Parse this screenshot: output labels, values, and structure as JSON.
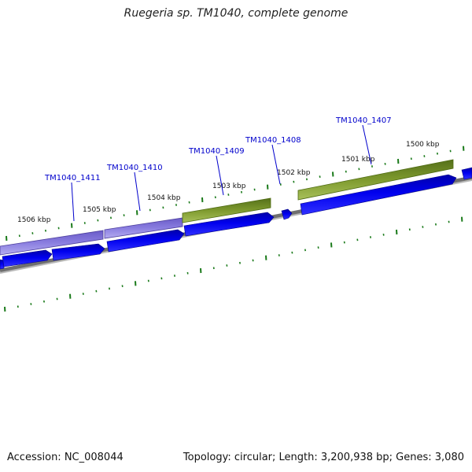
{
  "title": "Ruegeria sp. TM1040, complete genome",
  "accession": "Accession: NC_008044",
  "genome_info": "Topology: circular; Length: 3,200,938 bp; Genes: 3,080",
  "colors": {
    "gene_arrow": "#0000ee",
    "gene_arrow_edge": "#000088",
    "cds_purple": "#8878dc",
    "cds_purple_edge": "#4d3f9e",
    "cds_green": "#7e9a2e",
    "cds_green_edge": "#4e6a12",
    "backbone": "#7a7a7a",
    "tick": "#1a7a1a",
    "gene_label": "#0000cc",
    "leader_line": "#0000cc"
  },
  "tick_labels": [
    "1506 kbp",
    "1505 kbp",
    "1504 kbp",
    "1503 kbp",
    "1502 kbp",
    "1501 kbp",
    "1500 kbp"
  ],
  "gene_labels": [
    "TM1040_1411",
    "TM1040_1410",
    "TM1040_1409",
    "TM1040_1408",
    "TM1040_1407"
  ],
  "feature_bands": [
    {
      "color_key": "purple"
    },
    {
      "color_key": "purple"
    },
    {
      "color_key": "green"
    },
    {
      "color_key": "green"
    }
  ]
}
